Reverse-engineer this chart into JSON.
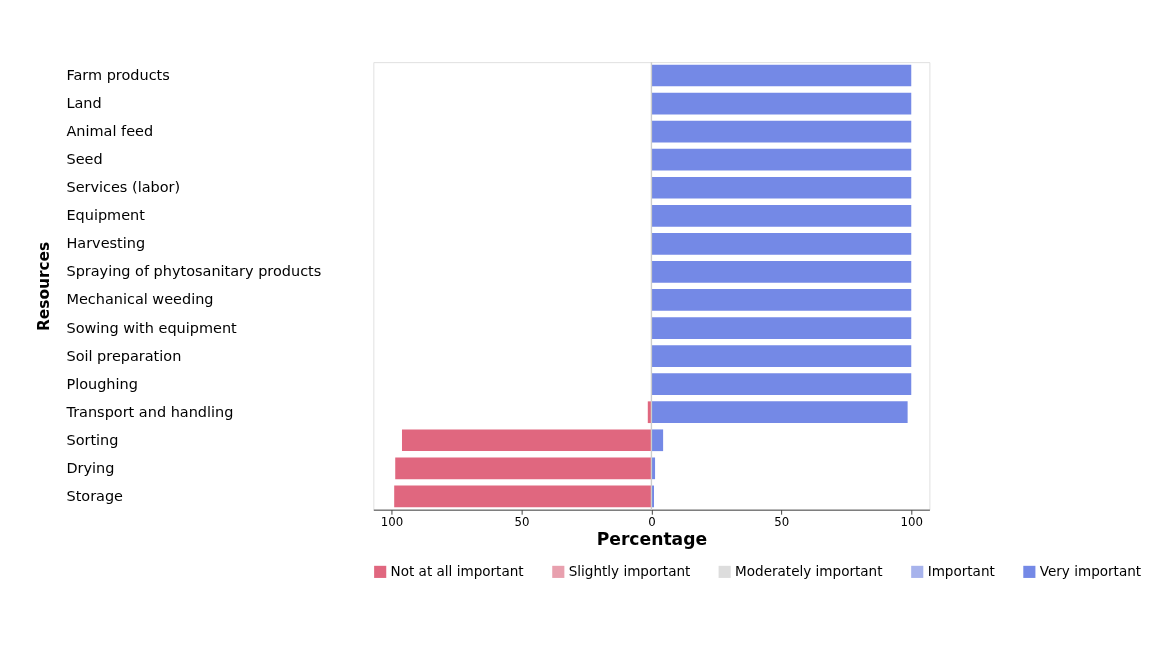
{
  "chart_data": {
    "type": "bar",
    "orientation": "horizontal",
    "stacked": true,
    "xlabel": "Percentage",
    "ylabel": "Resources",
    "categories": [
      "Farm products",
      "Land",
      "Animal feed",
      "Seed",
      "Services (labor)",
      "Equipment",
      "Harvesting",
      "Spraying of phytosanitary products",
      "Mechanical weeding",
      "Sowing with equipment",
      "Soil preparation",
      "Ploughing",
      "Transport and handling",
      "Sorting",
      "Drying",
      "Storage"
    ],
    "series": [
      {
        "name": "Not at all important",
        "color": "#e0677f",
        "values": [
          0,
          0,
          0,
          0,
          0,
          0,
          0,
          0,
          0,
          0,
          0,
          0,
          -1.4,
          -96,
          -98.6,
          -99
        ]
      },
      {
        "name": "Slightly important",
        "color": "#e8a0ae",
        "values": [
          0,
          0,
          0,
          0,
          0,
          0,
          0,
          0,
          0,
          0,
          0,
          0,
          0,
          0,
          0,
          0
        ]
      },
      {
        "name": "Moderately important",
        "color": "#dddddd",
        "values": [
          0,
          0,
          0,
          0,
          0,
          0,
          0,
          0,
          0,
          0,
          0,
          0,
          0,
          0,
          0,
          0
        ]
      },
      {
        "name": "Important",
        "color": "#a7b3ec",
        "values": [
          0,
          0,
          0,
          0,
          0,
          0,
          0,
          0,
          0,
          0,
          0,
          0,
          0,
          0,
          0,
          0
        ]
      },
      {
        "name": "Very important",
        "color": "#7489e6",
        "values": [
          100,
          100,
          100,
          100,
          100,
          100,
          100,
          100,
          100,
          100,
          100,
          100,
          98.6,
          4.5,
          1.4,
          1
        ]
      }
    ],
    "xlim": [
      -107,
      107
    ],
    "xticks": [
      {
        "value": -100,
        "label": "100"
      },
      {
        "value": -50,
        "label": "50"
      },
      0,
      50,
      100
    ],
    "ref_lines": [
      {
        "axis": "x",
        "value": 0,
        "color": "#cccccc"
      }
    ],
    "grid": false,
    "legend": "bottom"
  }
}
